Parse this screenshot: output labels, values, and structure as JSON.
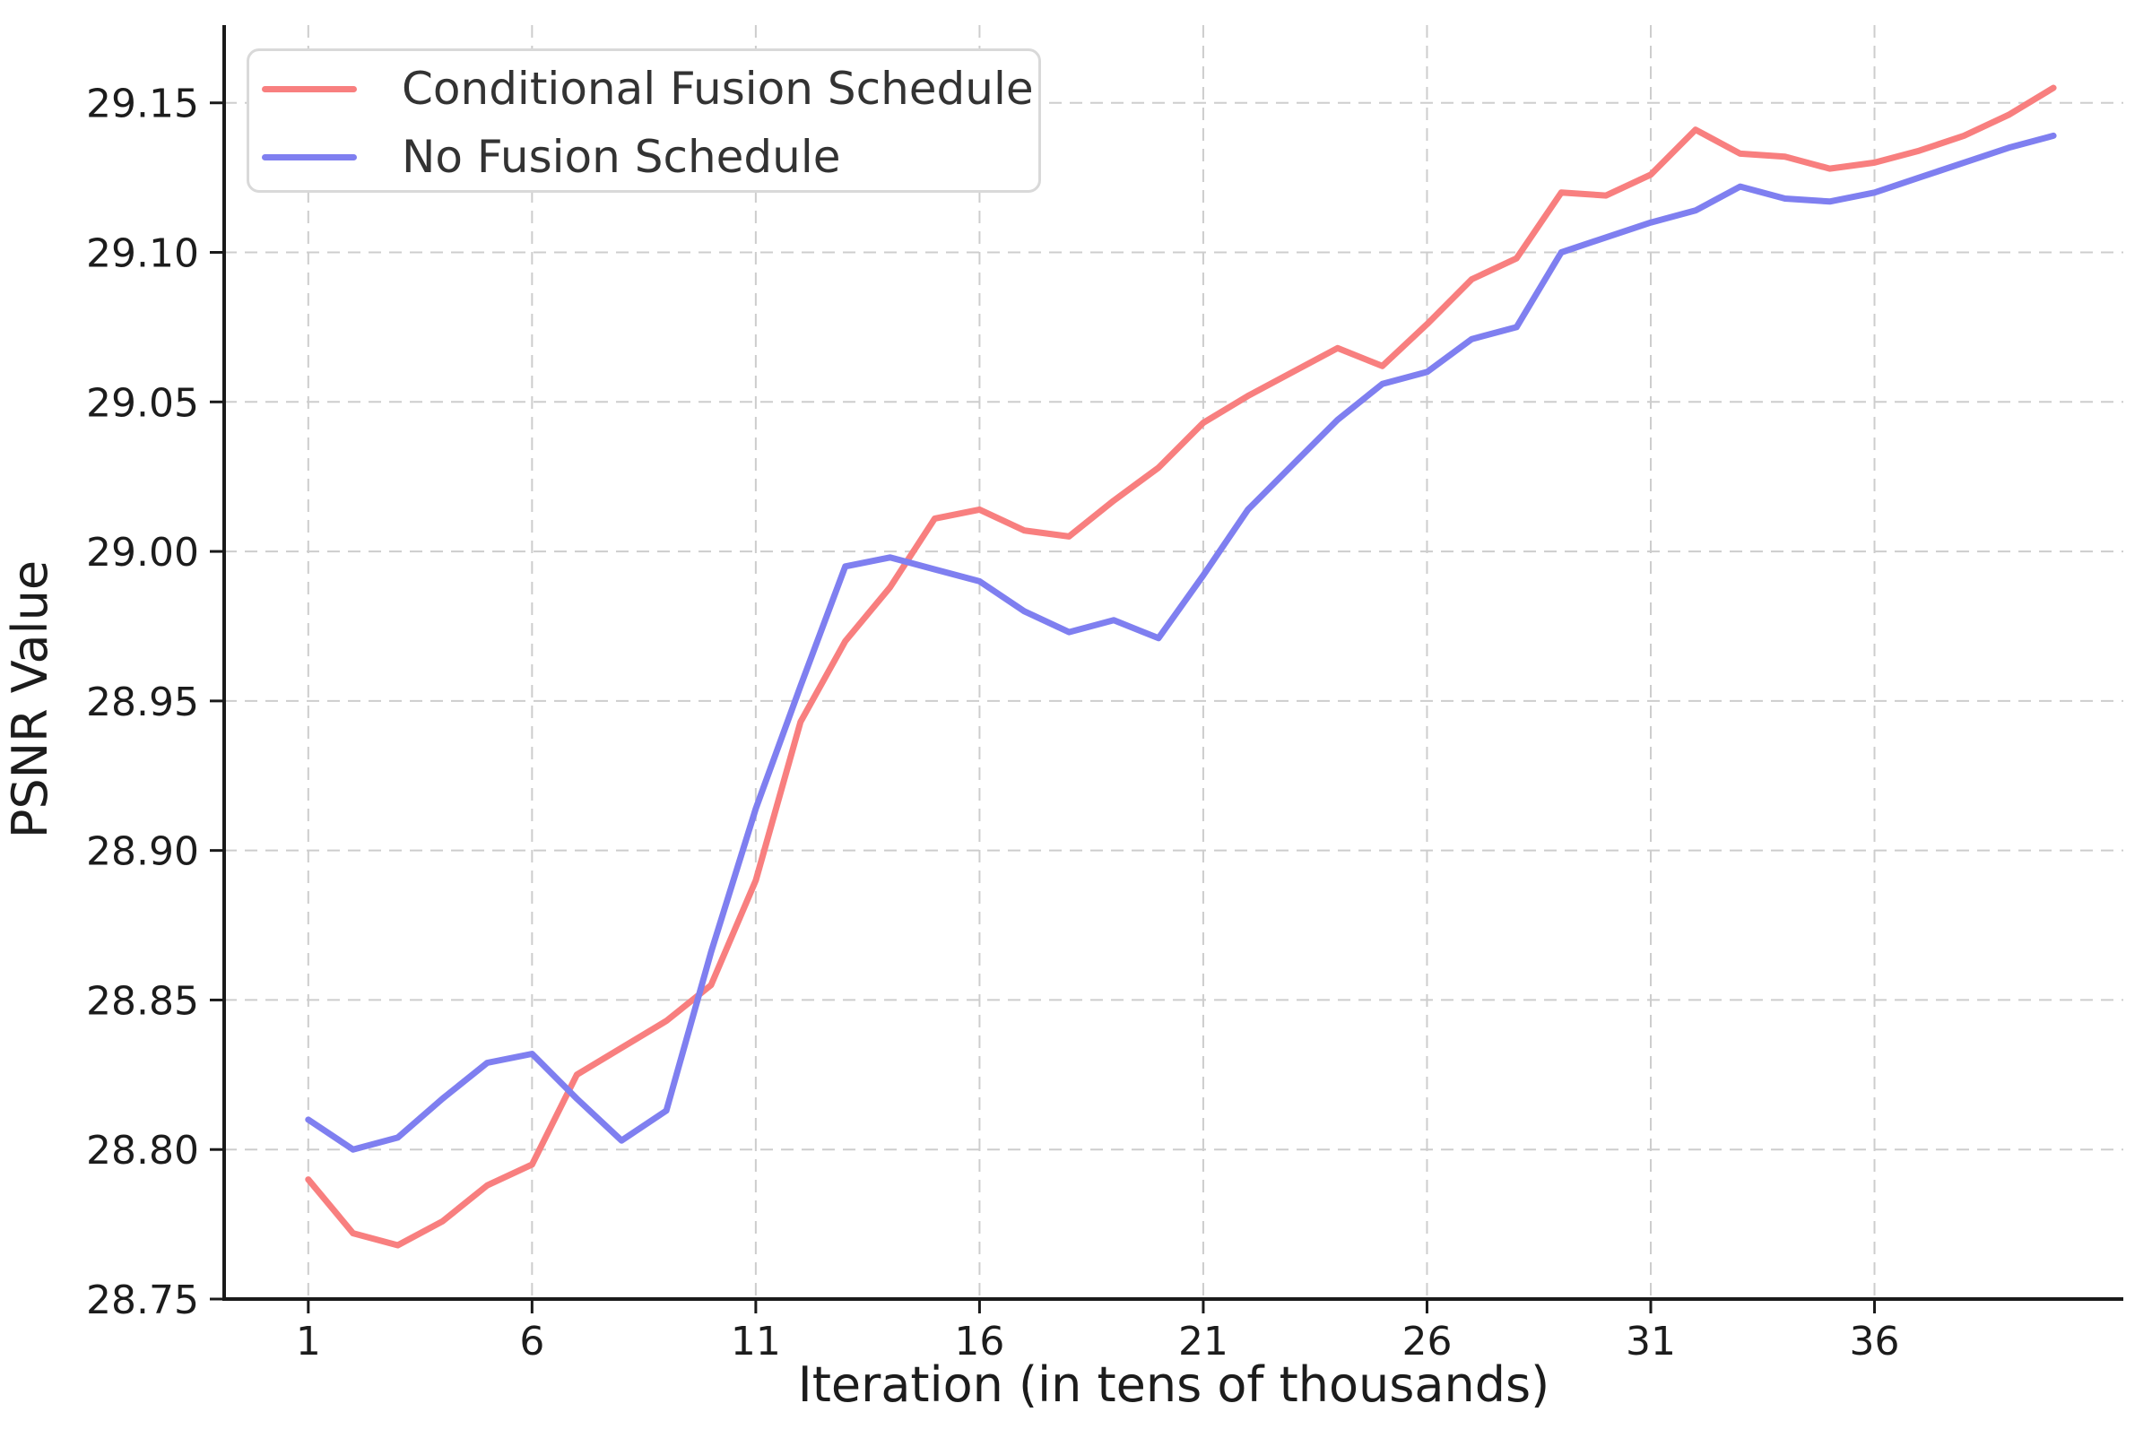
{
  "chart_data": {
    "type": "line",
    "title": "",
    "xlabel": "Iteration (in tens of thousands)",
    "ylabel": "PSNR Value",
    "x_tick_labels": [
      "1",
      "6",
      "11",
      "16",
      "21",
      "26",
      "31",
      "36"
    ],
    "x_tick_values": [
      1,
      6,
      11,
      16,
      21,
      26,
      31,
      36
    ],
    "y_tick_labels": [
      "28.75",
      "28.80",
      "28.85",
      "28.90",
      "28.95",
      "29.00",
      "29.05",
      "29.10",
      "29.15"
    ],
    "y_tick_values": [
      28.75,
      28.8,
      28.85,
      28.9,
      28.95,
      29.0,
      29.05,
      29.1,
      29.15
    ],
    "xlim": [
      -0.88,
      41.56
    ],
    "ylim": [
      28.75,
      29.176
    ],
    "grid": true,
    "grid_style": "dashed",
    "legend_position": "upper left",
    "x": [
      1,
      2,
      3,
      4,
      5,
      6,
      7,
      8,
      9,
      10,
      11,
      12,
      13,
      14,
      15,
      16,
      17,
      18,
      19,
      20,
      21,
      22,
      23,
      24,
      25,
      26,
      27,
      28,
      29,
      30,
      31,
      32,
      33,
      34,
      35,
      36,
      37,
      38,
      39,
      40
    ],
    "series": [
      {
        "name": "Conditional Fusion Schedule",
        "color": "#f87f7f",
        "values": [
          28.79,
          28.772,
          28.768,
          28.776,
          28.788,
          28.795,
          28.825,
          28.834,
          28.843,
          28.855,
          28.89,
          28.943,
          28.97,
          28.988,
          29.011,
          29.014,
          29.007,
          29.005,
          29.017,
          29.028,
          29.043,
          29.052,
          29.06,
          29.068,
          29.062,
          29.076,
          29.091,
          29.098,
          29.12,
          29.119,
          29.126,
          29.141,
          29.133,
          29.132,
          29.128,
          29.13,
          29.134,
          29.139,
          29.146,
          29.155
        ]
      },
      {
        "name": "No Fusion Schedule",
        "color": "#7f7ff0",
        "values": [
          28.81,
          28.8,
          28.804,
          28.817,
          28.829,
          28.832,
          28.817,
          28.803,
          28.813,
          28.866,
          28.914,
          28.955,
          28.995,
          28.998,
          28.994,
          28.99,
          28.98,
          28.973,
          28.977,
          28.971,
          28.992,
          29.014,
          29.029,
          29.044,
          29.056,
          29.06,
          29.071,
          29.075,
          29.1,
          29.105,
          29.11,
          29.114,
          29.122,
          29.118,
          29.117,
          29.12,
          29.125,
          29.13,
          29.135,
          29.139
        ]
      }
    ],
    "colors": {
      "grid": "#cdcdcd",
      "spine": "#1a1a1a",
      "tick_text": "#1c1c1c",
      "legend_border": "#d9d9d9",
      "legend_text": "#333333"
    }
  }
}
